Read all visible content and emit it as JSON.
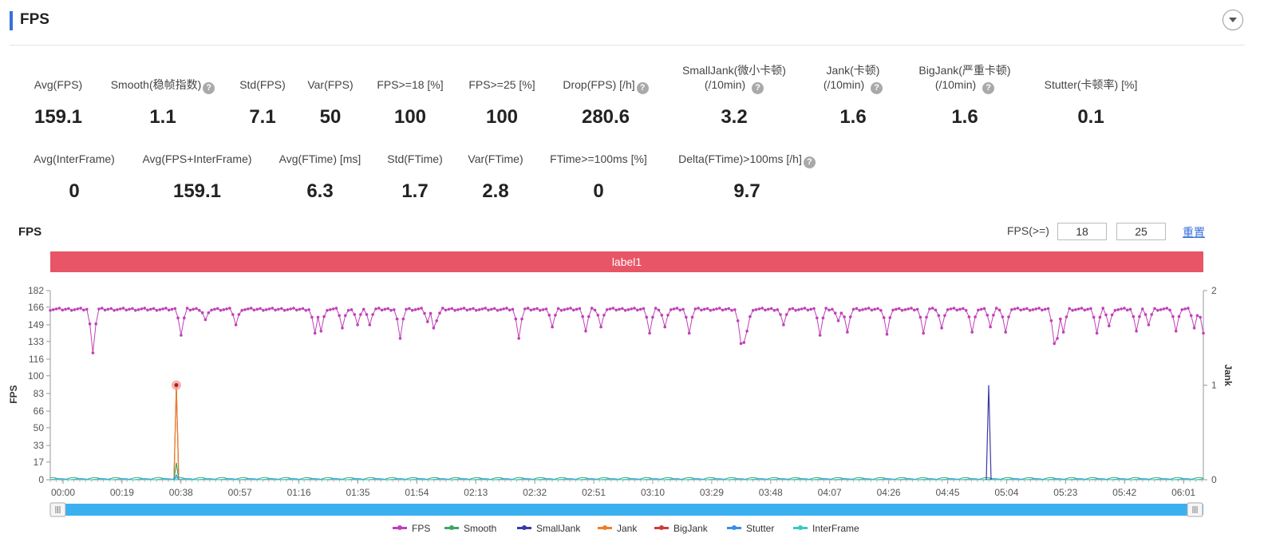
{
  "header": {
    "title": "FPS"
  },
  "metrics_row1": [
    {
      "label": "Avg(FPS)",
      "value": "159.1",
      "help": false
    },
    {
      "label": "Smooth(稳帧指数)",
      "value": "1.1",
      "help": true
    },
    {
      "label": "Std(FPS)",
      "value": "7.1",
      "help": false
    },
    {
      "label": "Var(FPS)",
      "value": "50",
      "help": false
    },
    {
      "label": "FPS>=18 [%]",
      "value": "100",
      "help": false
    },
    {
      "label": "FPS>=25 [%]",
      "value": "100",
      "help": false
    },
    {
      "label": "Drop(FPS) [/h]",
      "value": "280.6",
      "help": true
    },
    {
      "label": "SmallJank(微小卡顿)",
      "label2": "(/10min)",
      "value": "3.2",
      "help": true
    },
    {
      "label": "Jank(卡顿)",
      "label2": "(/10min)",
      "value": "1.6",
      "help": true
    },
    {
      "label": "BigJank(严重卡顿)",
      "label2": "(/10min)",
      "value": "1.6",
      "help": true
    },
    {
      "label": "Stutter(卡顿率) [%]",
      "value": "0.1",
      "help": false
    }
  ],
  "metrics_row2": [
    {
      "label": "Avg(InterFrame)",
      "value": "0",
      "help": false
    },
    {
      "label": "Avg(FPS+InterFrame)",
      "value": "159.1",
      "help": false
    },
    {
      "label": "Avg(FTime) [ms]",
      "value": "6.3",
      "help": false
    },
    {
      "label": "Std(FTime)",
      "value": "1.7",
      "help": false
    },
    {
      "label": "Var(FTime)",
      "value": "2.8",
      "help": false
    },
    {
      "label": "FTime>=100ms [%]",
      "value": "0",
      "help": false
    },
    {
      "label": "Delta(FTime)>100ms [/h]",
      "value": "9.7",
      "help": true
    }
  ],
  "chart_panel": {
    "title": "FPS",
    "fps_threshold_label": "FPS(>=)",
    "threshold_1": "18",
    "threshold_2": "25",
    "reset_label": "重置",
    "band_label": "label1"
  },
  "chart_data": {
    "type": "line",
    "y_left": {
      "label": "FPS",
      "ticks": [
        "0",
        "17",
        "33",
        "50",
        "66",
        "83",
        "100",
        "116",
        "133",
        "149",
        "166",
        "182"
      ],
      "range": [
        0,
        182
      ]
    },
    "y_right": {
      "label": "Jank",
      "ticks": [
        "0",
        "1",
        "2"
      ],
      "range": [
        0,
        2
      ]
    },
    "x_ticks": [
      "00:00",
      "00:19",
      "00:38",
      "00:57",
      "01:16",
      "01:35",
      "01:54",
      "02:13",
      "02:32",
      "02:51",
      "03:10",
      "03:29",
      "03:48",
      "04:07",
      "04:26",
      "04:45",
      "05:04",
      "05:23",
      "05:42",
      "06:01"
    ],
    "duration_seconds": 372,
    "grid": false,
    "legend_position": "bottom",
    "series": [
      {
        "name": "FPS",
        "color": "#c040b8",
        "axis": "left",
        "markers": true,
        "summary": {
          "avg": 159.1,
          "typical": 164,
          "min_dip": 122,
          "dips_seconds": [
            [
              40,
              122
            ],
            [
              126,
              139
            ],
            [
              147,
              154
            ],
            [
              176,
              149
            ],
            [
              254,
              141
            ],
            [
              259,
              143
            ],
            [
              280,
              146
            ],
            [
              294,
              149
            ],
            [
              306,
              149
            ],
            [
              334,
              136
            ],
            [
              360,
              152
            ],
            [
              370,
              153
            ],
            [
              366,
              146
            ],
            [
              448,
              136
            ],
            [
              480,
              147
            ],
            [
              510,
              143
            ],
            [
              525,
              147
            ],
            [
              573,
              141
            ],
            [
              588,
              147
            ],
            [
              611,
              141
            ],
            [
              660,
              131
            ],
            [
              663,
              132
            ],
            [
              666,
              143
            ],
            [
              700,
              149
            ],
            [
              736,
              139
            ],
            [
              752,
              153
            ],
            [
              760,
              142
            ],
            [
              800,
              140
            ],
            [
              835,
              141
            ],
            [
              850,
              146
            ],
            [
              880,
              142
            ],
            [
              897,
              147
            ],
            [
              911,
              142
            ],
            [
              960,
              131
            ],
            [
              963,
              136
            ],
            [
              968,
              142
            ],
            [
              1000,
              141
            ],
            [
              1012,
              148
            ],
            [
              1038,
              143
            ],
            [
              1050,
              149
            ],
            [
              1074,
              143
            ],
            [
              1093,
              146
            ],
            [
              1101,
              141
            ]
          ]
        }
      },
      {
        "name": "Smooth",
        "color": "#3aa864",
        "axis": "right",
        "markers": false,
        "spikes": [
          [
            40,
            0.18
          ]
        ]
      },
      {
        "name": "SmallJank",
        "color": "#3a3aa8",
        "axis": "right",
        "markers": false,
        "spikes": [
          [
            303,
            1
          ]
        ]
      },
      {
        "name": "Jank",
        "color": "#e8812a",
        "axis": "right",
        "markers": false,
        "spikes": [
          [
            40,
            1
          ]
        ]
      },
      {
        "name": "BigJank",
        "color": "#d03a3a",
        "axis": "right",
        "markers": false,
        "spikes": [
          [
            40,
            1
          ]
        ]
      },
      {
        "name": "Stutter",
        "color": "#3a8ee8",
        "axis": "right",
        "markers": false,
        "spikes": [
          [
            40,
            0.05
          ]
        ]
      },
      {
        "name": "InterFrame",
        "color": "#3ac8c8",
        "axis": "right",
        "markers": false,
        "spikes": []
      }
    ],
    "highlight_point": {
      "series": "Jank",
      "x_seconds": 40,
      "value": 1
    }
  },
  "colors": {
    "accent": "#3a6fd8",
    "band": "#e85566",
    "slider": "#3ab0f0"
  }
}
